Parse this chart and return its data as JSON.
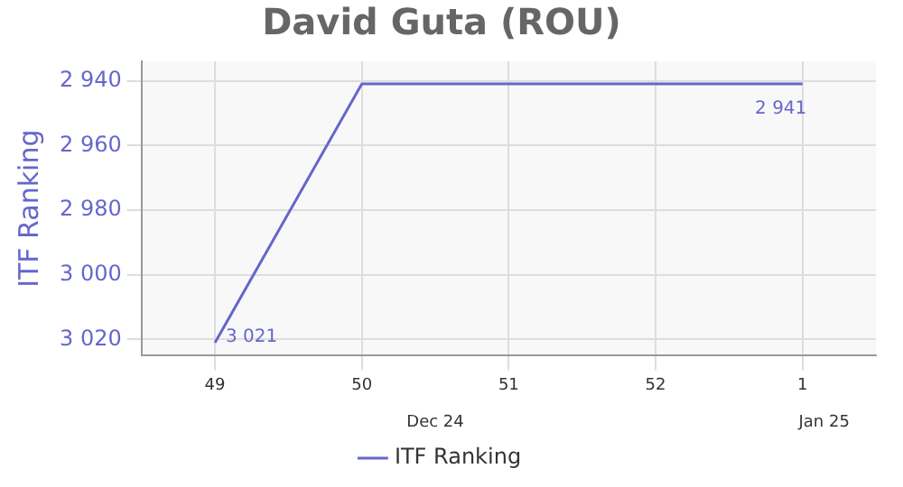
{
  "chart_data": {
    "type": "line",
    "title": "David Guta (ROU)",
    "ylabel": "ITF Ranking",
    "categories": [
      "49",
      "50",
      "51",
      "52",
      "1"
    ],
    "series": [
      {
        "name": "ITF Ranking",
        "color": "#6666cc",
        "values": [
          3021,
          2941,
          2941,
          2941,
          2941
        ],
        "value_labels": [
          "3 021",
          null,
          null,
          null,
          "2 941"
        ]
      }
    ],
    "ylim": [
      3025,
      2934
    ],
    "yticks": [
      {
        "value": 2940,
        "label": "2 940"
      },
      {
        "value": 2960,
        "label": "2 960"
      },
      {
        "value": 2980,
        "label": "2 980"
      },
      {
        "value": 3000,
        "label": "3 000"
      },
      {
        "value": 3020,
        "label": "3 020"
      }
    ],
    "annotations": [
      "Dec 24",
      "Jan 25"
    ],
    "grid": true,
    "legend": "bottom",
    "marker": "none",
    "line_style": "solid"
  }
}
